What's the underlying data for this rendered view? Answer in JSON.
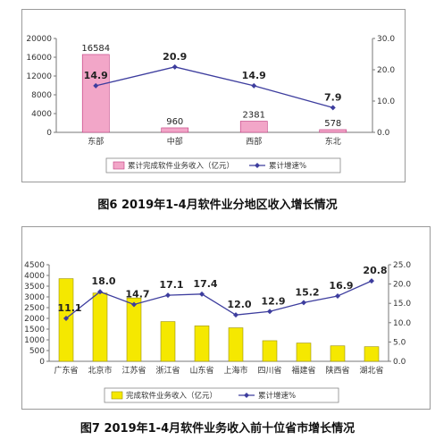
{
  "charts": {
    "region": {
      "caption": "图6 2019年1-4月软件业分地区收入增长情况",
      "chart_data": {
        "type": "bar",
        "categories": [
          "东部",
          "中部",
          "西部",
          "东北"
        ],
        "series": [
          {
            "name": "累计完成软件业务收入（亿元）",
            "values": [
              16584,
              960,
              2381,
              578
            ],
            "axis": "left",
            "kind": "bar"
          },
          {
            "name": "累计增速%",
            "values": [
              14.9,
              20.9,
              14.9,
              7.9
            ],
            "axis": "right",
            "kind": "line"
          }
        ],
        "ylim": [
          0,
          20000
        ],
        "yticks": [
          "0",
          "4000",
          "8000",
          "12000",
          "16000",
          "20000"
        ],
        "y2lim": [
          0,
          30
        ],
        "y2ticks": [
          "0.0",
          "10.0",
          "20.0",
          "30.0"
        ],
        "bar_labels": [
          "16584",
          "960",
          "2381",
          "578"
        ],
        "line_labels": [
          "14.9",
          "20.9",
          "14.9",
          "7.9"
        ],
        "bar_color": "#f2a6c8",
        "bar_border": "#c0397e",
        "line_color": "#3d3d9e",
        "legend_position": "bottom"
      }
    },
    "provinces": {
      "caption": "图7 2019年1-4月软件业务收入前十位省市增长情况",
      "chart_data": {
        "type": "bar",
        "categories": [
          "广东省",
          "北京市",
          "江苏省",
          "浙江省",
          "山东省",
          "上海市",
          "四川省",
          "福建省",
          "陕西省",
          "湖北省"
        ],
        "series": [
          {
            "name": "完成软件业务收入（亿元）",
            "values": [
              3850,
              3180,
              2950,
              1850,
              1650,
              1560,
              960,
              850,
              720,
              680
            ],
            "axis": "left",
            "kind": "bar"
          },
          {
            "name": "累计增速%",
            "values": [
              11.1,
              18.0,
              14.7,
              17.1,
              17.4,
              12.0,
              12.9,
              15.2,
              16.9,
              20.8
            ],
            "axis": "right",
            "kind": "line"
          }
        ],
        "ylim": [
          0,
          4500
        ],
        "yticks": [
          "0",
          "500",
          "1000",
          "1500",
          "2000",
          "2500",
          "3000",
          "3500",
          "4000",
          "4500"
        ],
        "y2lim": [
          0,
          25
        ],
        "y2ticks": [
          "0.0",
          "5.0",
          "10.0",
          "15.0",
          "20.0",
          "25.0"
        ],
        "line_labels": [
          "11.1",
          "18.0",
          "14.7",
          "17.1",
          "17.4",
          "12.0",
          "12.9",
          "15.2",
          "16.9",
          "20.8"
        ],
        "bar_color": "#f5e800",
        "bar_border": "#9a9000",
        "line_color": "#3d3d9e",
        "legend_position": "bottom"
      }
    }
  }
}
